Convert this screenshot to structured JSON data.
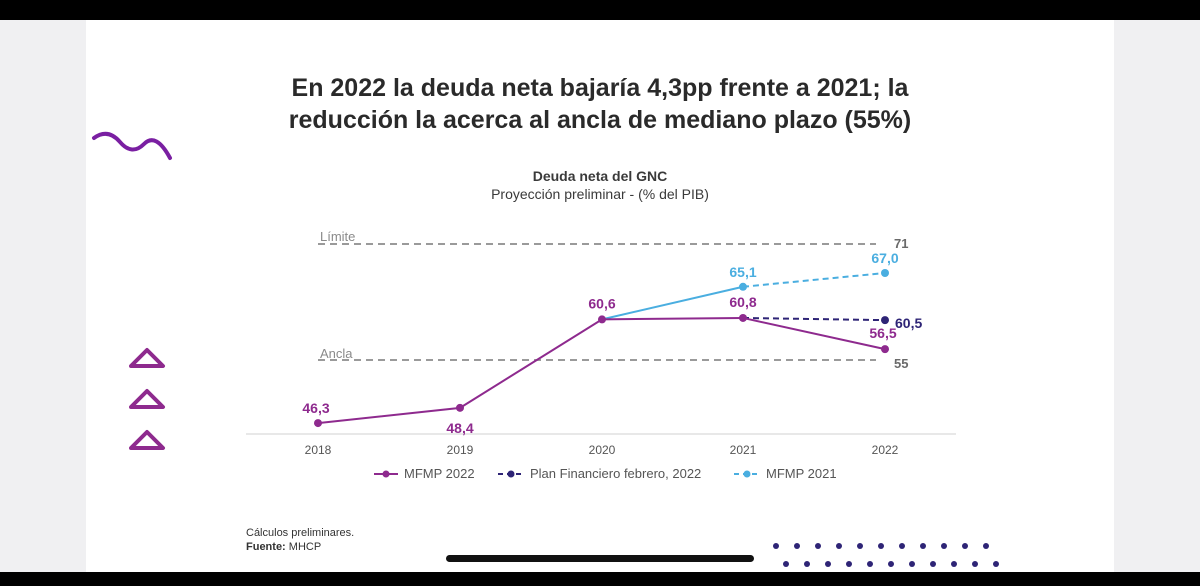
{
  "headline": {
    "line1": "En 2022 la deuda neta bajaría 4,3pp frente a 2021; la",
    "line2": "reducción la acerca al ancla de mediano plazo (55%)"
  },
  "footnote": {
    "line1": "Cálculos preliminares.",
    "source_label": "Fuente:",
    "source_value": " MHCP"
  },
  "colors": {
    "mfmp2022": "#8e2a8e",
    "plan": "#2e2476",
    "mfmp2021": "#4aaee0",
    "reference": "#9a9a9a",
    "decor_purple": "#7a1fa2"
  },
  "chart_data": {
    "type": "line",
    "title": "Deuda neta del GNC",
    "subtitle": "Proyección preliminar - (% del PIB)",
    "categories": [
      "2018",
      "2019",
      "2020",
      "2021",
      "2022"
    ],
    "ylim": [
      40,
      72
    ],
    "series": [
      {
        "name": "MFMP 2022",
        "values": [
          46.3,
          48.4,
          60.6,
          60.8,
          56.5
        ],
        "labels": [
          "46,3",
          "48,4",
          "60,6",
          "60,8",
          "56,5"
        ],
        "style": "solid",
        "color": "#8e2a8e"
      },
      {
        "name": "Plan Financiero febrero, 2022",
        "values": [
          null,
          null,
          null,
          60.8,
          60.5
        ],
        "labels": [
          "",
          "",
          "",
          "",
          "60,5"
        ],
        "style": "dashed",
        "color": "#2e2476"
      },
      {
        "name": "MFMP 2021",
        "values": [
          null,
          null,
          60.6,
          65.1,
          67.0
        ],
        "labels": [
          "",
          "",
          "",
          "65,1",
          "67,0"
        ],
        "style": "solid-then-dashed",
        "color": "#4aaee0"
      }
    ],
    "reference_lines": [
      {
        "name": "Límite",
        "value": 71,
        "label": "71"
      },
      {
        "name": "Ancla",
        "value": 55,
        "label": "55"
      }
    ],
    "legend": [
      "MFMP 2022",
      "Plan Financiero febrero, 2022",
      "MFMP 2021"
    ],
    "legend_position": "bottom"
  }
}
